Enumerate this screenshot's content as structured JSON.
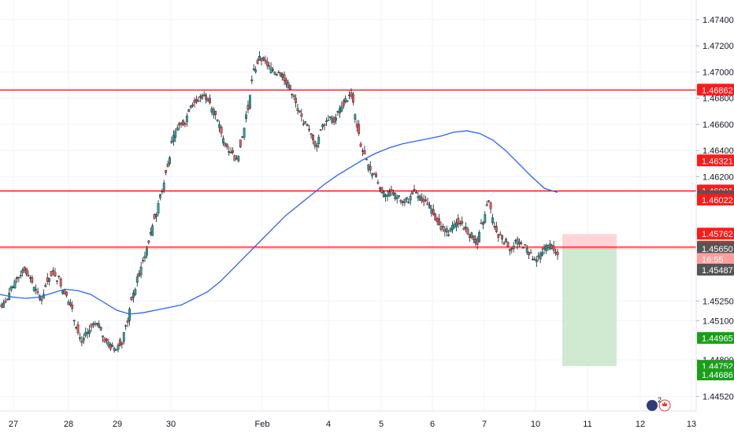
{
  "chart_data": {
    "type": "candlestick",
    "y_axis": {
      "range": [
        1.4441,
        1.4755
      ],
      "ticks": [
        "1.47400",
        "1.47200",
        "1.47000",
        "1.46800",
        "1.46600",
        "1.46400",
        "1.46200",
        "1.45250",
        "1.45100",
        "1.44800",
        "1.44520"
      ],
      "visible_tick_values": [
        1.474,
        1.472,
        1.47,
        1.468,
        1.466,
        1.464,
        1.462,
        1.4525,
        1.451,
        1.448,
        1.4452
      ]
    },
    "x_axis": {
      "labels": [
        "27",
        "28",
        "29",
        "30",
        "Feb",
        "4",
        "5",
        "6",
        "7",
        "10",
        "11",
        "12",
        "13"
      ],
      "grid": true
    },
    "grid": true,
    "horizontal_levels": [
      {
        "value": 1.46862,
        "color": "#ff0000"
      },
      {
        "value": 1.46091,
        "color": "#ff0000"
      },
      {
        "value": 1.45662,
        "color": "#ff0000"
      }
    ],
    "price_badges": [
      {
        "text": "1.46862",
        "value": 1.46862,
        "color": "#ff1a1a"
      },
      {
        "text": "1.46321",
        "value": 1.46321,
        "color": "#ff1a1a"
      },
      {
        "text": "1.46091",
        "value": 1.46091,
        "color": "#ff1a1a"
      },
      {
        "text": "1.46047",
        "value": 1.46047,
        "color": "#555555"
      },
      {
        "text": "1.46022",
        "value": 1.46022,
        "color": "#ff1a1a"
      },
      {
        "text": "1.45762",
        "value": 1.45762,
        "color": "#ff1a1a"
      },
      {
        "text": "1.45662",
        "value": 1.45662,
        "color": "#ff1a1a"
      },
      {
        "text": "1.45650",
        "value": 1.4565,
        "color": "#555555"
      },
      {
        "text": "16:55",
        "value": 1.45569,
        "color": "#ff9e9e"
      },
      {
        "text": "1.45487",
        "value": 1.45487,
        "color": "#555555"
      },
      {
        "text": "1.44965",
        "value": 1.44965,
        "color": "#1a9e1a"
      },
      {
        "text": "1.44752",
        "value": 1.44752,
        "color": "#1a9e1a"
      },
      {
        "text": "1.44686",
        "value": 1.44686,
        "color": "#1a9e1a"
      }
    ],
    "price_series_close": [
      1.452,
      1.4526,
      1.4535,
      1.4544,
      1.455,
      1.4543,
      1.4532,
      1.4527,
      1.454,
      1.4547,
      1.4542,
      1.4532,
      1.4522,
      1.4507,
      1.4495,
      1.45,
      1.4507,
      1.4505,
      1.4496,
      1.449,
      1.4488,
      1.4494,
      1.451,
      1.453,
      1.4545,
      1.456,
      1.4575,
      1.4592,
      1.461,
      1.463,
      1.465,
      1.466,
      1.4662,
      1.4675,
      1.4678,
      1.4682,
      1.468,
      1.467,
      1.4658,
      1.4645,
      1.464,
      1.4632,
      1.465,
      1.4672,
      1.47,
      1.471,
      1.4708,
      1.4702,
      1.47,
      1.4698,
      1.469,
      1.468,
      1.4668,
      1.466,
      1.4652,
      1.4645,
      1.466,
      1.4665,
      1.4663,
      1.467,
      1.4678,
      1.4683,
      1.466,
      1.464,
      1.4628,
      1.4622,
      1.4612,
      1.4605,
      1.4608,
      1.4605,
      1.46,
      1.4602,
      1.4608,
      1.4604,
      1.46,
      1.4595,
      1.4588,
      1.458,
      1.4578,
      1.4582,
      1.4586,
      1.458,
      1.4575,
      1.457,
      1.4585,
      1.46,
      1.4582,
      1.4575,
      1.457,
      1.4565,
      1.457,
      1.4568,
      1.4562,
      1.4555,
      1.456,
      1.4566,
      1.4567,
      1.456
    ],
    "moving_average": [
      1.453,
      1.4528,
      1.4527,
      1.4528,
      1.4531,
      1.4534,
      1.4533,
      1.453,
      1.4524,
      1.4518,
      1.4515,
      1.4516,
      1.4518,
      1.452,
      1.4522,
      1.4527,
      1.4532,
      1.454,
      1.455,
      1.456,
      1.457,
      1.458,
      1.459,
      1.4598,
      1.4606,
      1.4614,
      1.4621,
      1.4627,
      1.4633,
      1.4638,
      1.4642,
      1.4645,
      1.4647,
      1.4649,
      1.4651,
      1.4654,
      1.4655,
      1.4653,
      1.4648,
      1.464,
      1.463,
      1.462,
      1.4611,
      1.4608
    ],
    "position_box": {
      "entry": 1.4565,
      "stop": 1.45762,
      "target": 1.44752
    },
    "currency_badge": {
      "count": "2"
    },
    "colors": {
      "bull": "#26a69a",
      "bear": "#ef5350",
      "ma": "#2962ff",
      "level": "#ff0000",
      "stop_zone": "#ffcdd2",
      "target_zone": "#c8e6c9"
    }
  }
}
